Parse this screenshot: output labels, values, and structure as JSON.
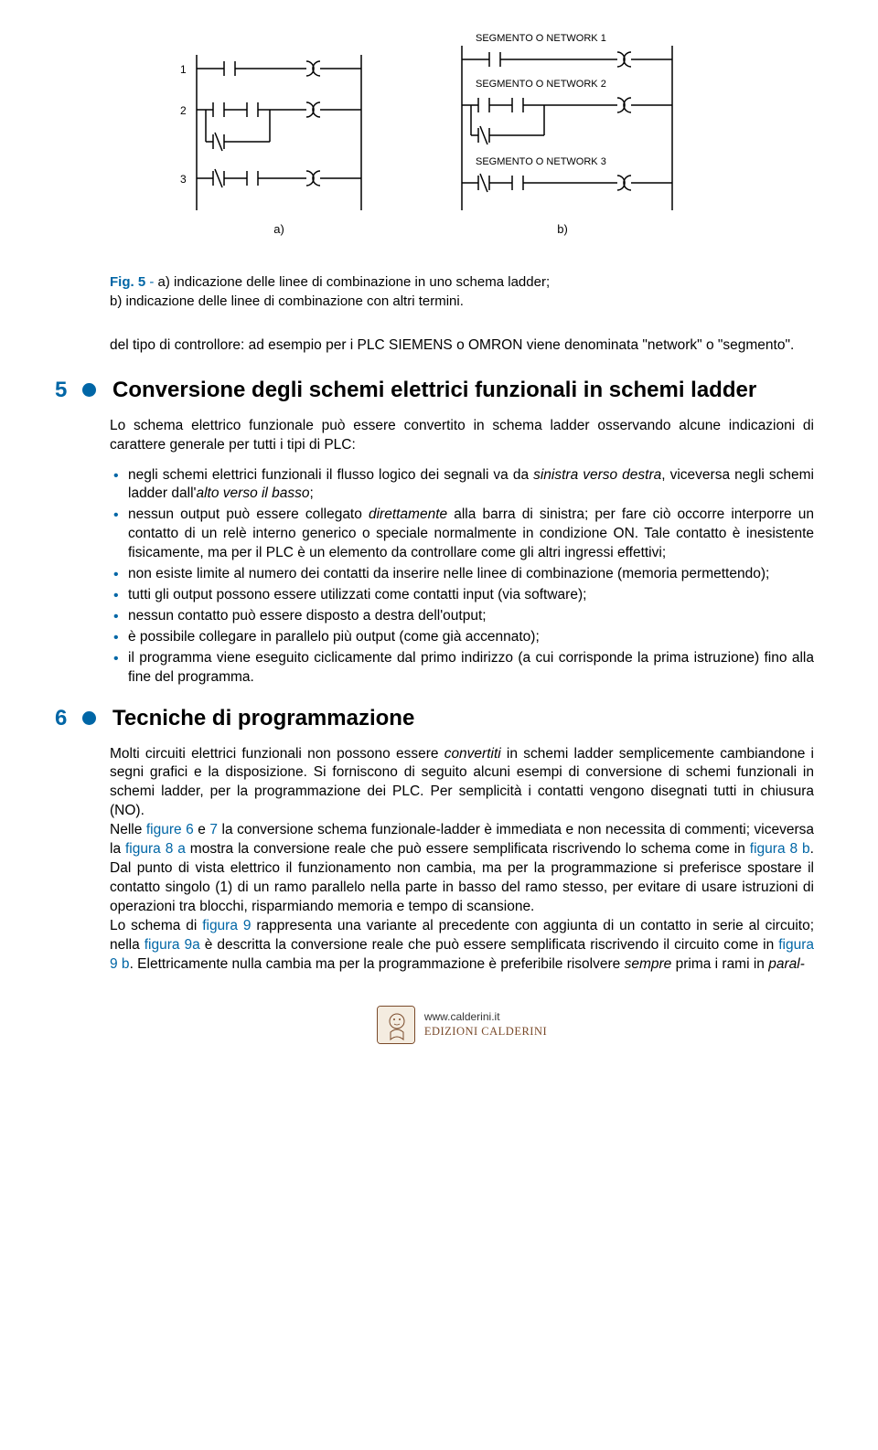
{
  "diagram": {
    "left": {
      "segment_labels": [
        "1",
        "2",
        "3"
      ],
      "sub_label": "a)"
    },
    "right": {
      "segment_titles": [
        "SEGMENTO O NETWORK 1",
        "SEGMENTO O NETWORK 2",
        "SEGMENTO O NETWORK 3"
      ],
      "sub_label": "b)"
    },
    "colors": {
      "stroke": "#000000"
    }
  },
  "caption": {
    "fig_label": "Fig. 5",
    "dash": " - ",
    "text_a": "a) indicazione delle linee di combinazione in uno schema ladder;",
    "text_b": "b)   indicazione delle linee di combinazione con altri termini."
  },
  "paragraph_1": "del tipo di controllore: ad esempio per i PLC SIEMENS o OMRON viene denominata \"network\" o \"segmento\".",
  "section5": {
    "num": "5",
    "title": "Conversione degli schemi elettrici funzionali in schemi ladder",
    "intro": "Lo schema elettrico funzionale può essere convertito in schema ladder osservando alcune indicazioni di carattere generale per tutti i tipi di PLC:",
    "items": [
      "negli schemi elettrici funzionali il flusso logico dei segnali va da <span class=\"em\">sinistra verso destra</span>, viceversa negli schemi ladder dall'<span class=\"em\">alto  verso il basso</span>;",
      "nessun output può essere collegato <span class=\"em\">direttamente</span> alla barra di sinistra; per fare ciò occorre interporre un contatto di un relè interno generico o speciale normalmente in condizione ON. Tale contatto è inesistente fisicamente, ma per il PLC è un elemento da controllare come gli altri ingressi effettivi;",
      "non esiste limite al numero dei contatti da inserire nelle linee di combinazione (memoria permettendo);",
      "tutti gli output possono essere utilizzati come contatti input (via software);",
      "nessun contatto può essere disposto a destra dell'output;",
      "è possibile collegare in parallelo più output (come già accennato);",
      "il programma viene eseguito ciclicamente dal primo indirizzo (a cui corrisponde la prima istruzione) fino alla fine del programma."
    ]
  },
  "section6": {
    "num": "6",
    "title": "Tecniche di programmazione",
    "body": "Molti circuiti elettrici funzionali non possono essere <span class=\"em\">convertiti</span> in schemi ladder semplicemente cambiandone i segni grafici e la disposizione. Si forniscono di seguito alcuni esempi di conversione di schemi funzionali in schemi ladder, per la programmazione dei PLC. Per semplicità i contatti vengono disegnati tutti in chiusura (NO).<br>Nelle <span class=\"figref\">figure  6</span>  e  <span class=\"figref\">7</span> la conversione schema funzionale-ladder è immediata e non necessita di commenti; viceversa la <span class=\"figref\">figura 8  a</span> mostra la conversione reale che può essere semplificata riscrivendo lo schema come in <span class=\"figref\">figura  8 b</span>. Dal punto di vista elettrico il funzionamento non cambia, ma per la programmazione si preferisce spostare il contatto singolo (1) di un ramo parallelo nella parte in basso del ramo stesso, per evitare di usare istruzioni di operazioni tra blocchi, risparmiando memoria e tempo di scansione.<br>Lo schema di <span class=\"figref\">figura 9</span> rappresenta una variante al precedente con aggiunta di un contatto in serie al circuito; nella <span class=\"figref\">figura 9a</span> è descritta la conversione reale che può essere semplificata riscrivendo il circuito come in <span class=\"figref\">figura  9 b</span>. Elettricamente nulla cambia ma per la programmazione è preferibile risolvere <span class=\"em\">sempre</span> prima i rami in <span class=\"em\">paral-</span>"
  },
  "footer": {
    "url": "www.calderini.it",
    "publisher": "EDIZIONI CALDERINI"
  }
}
